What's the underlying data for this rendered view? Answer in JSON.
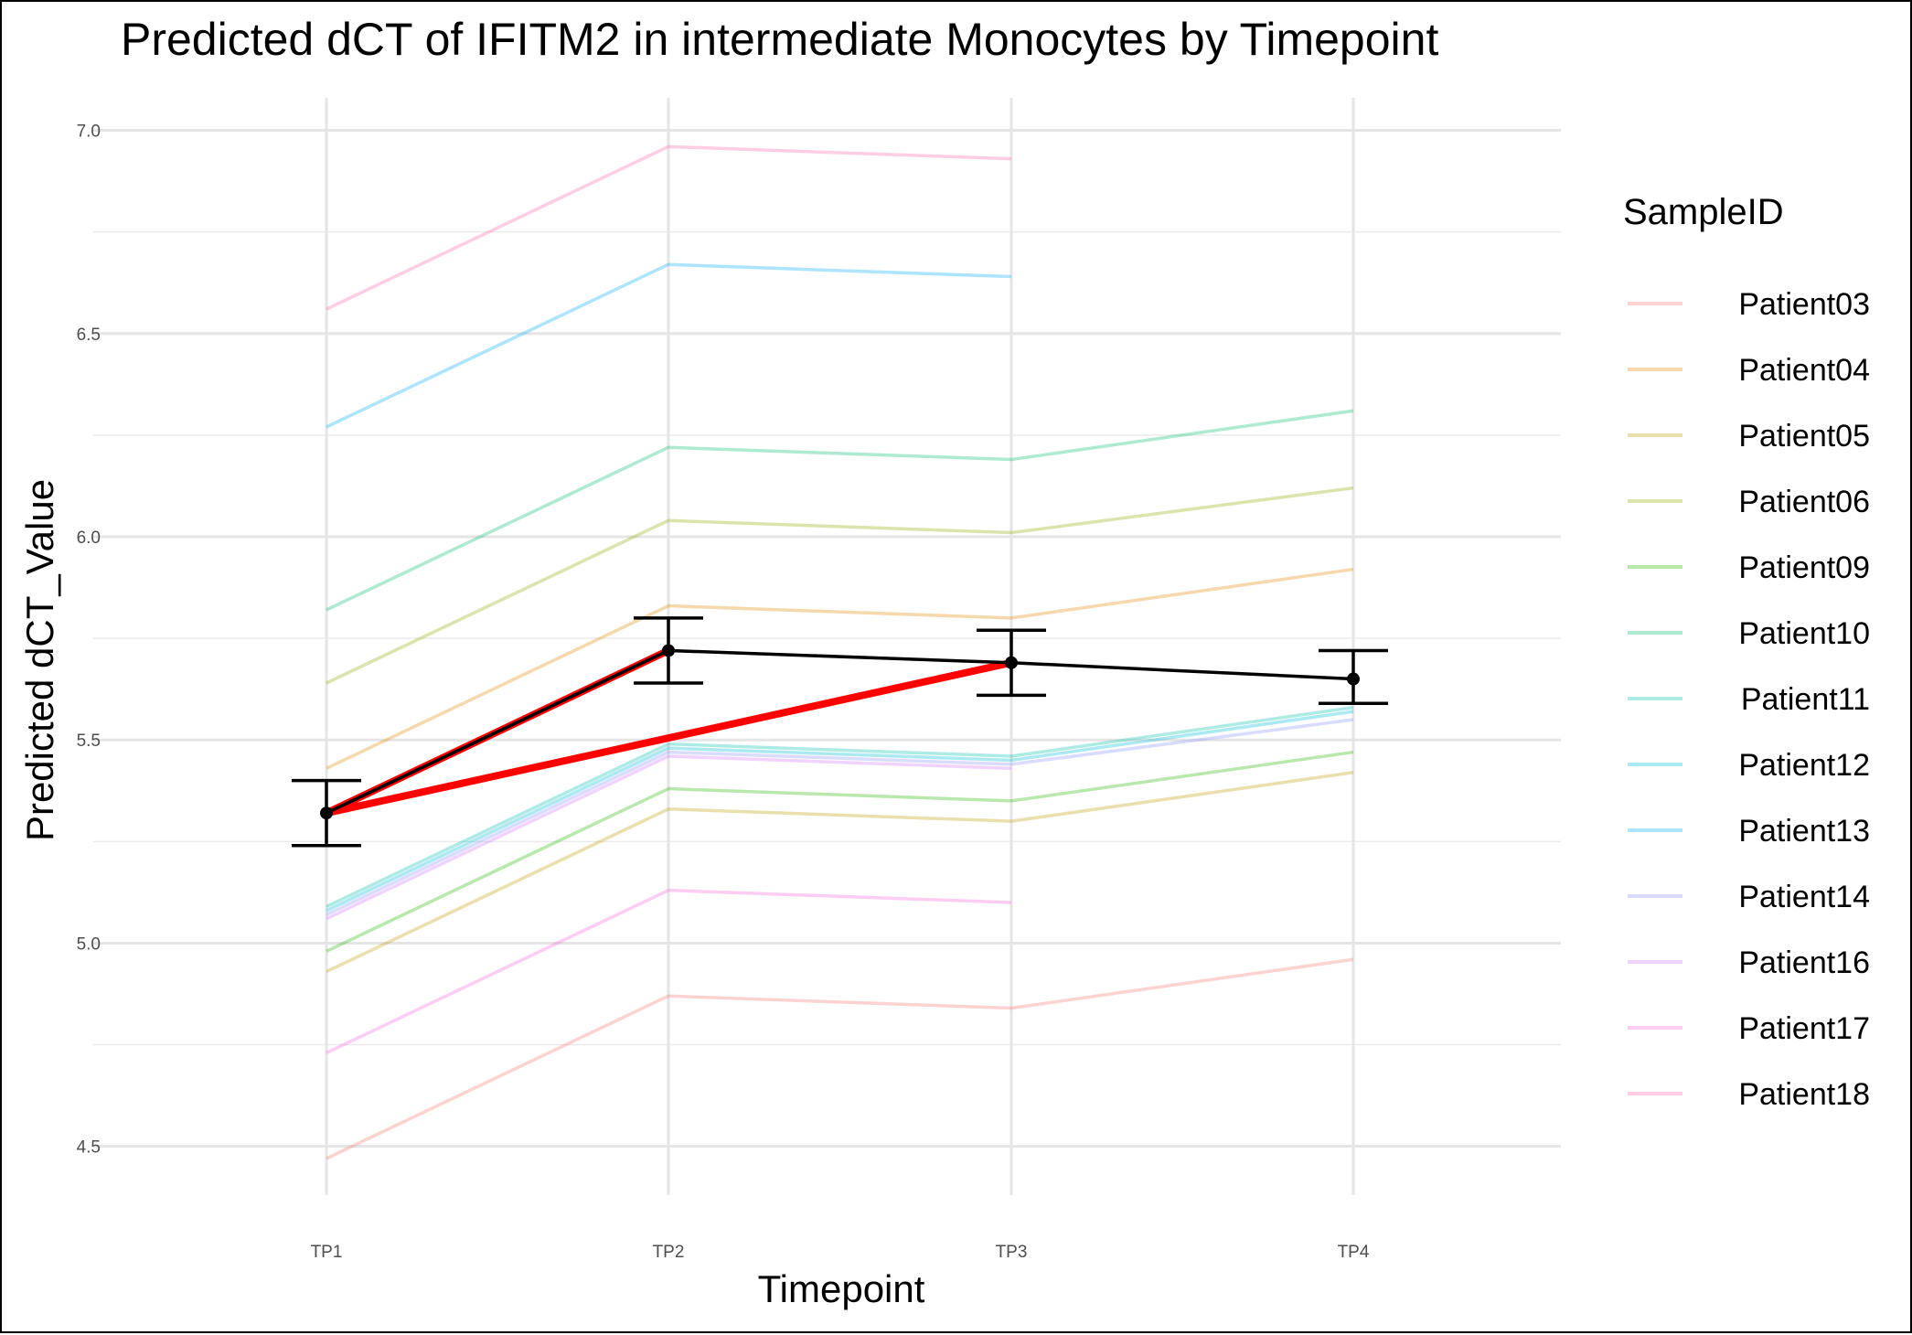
{
  "chart_data": {
    "type": "line",
    "title": "Predicted dCT of  IFITM2 in  intermediate  Monocytes by Timepoint",
    "xlabel": "Timepoint",
    "ylabel": "Predicted dCT_Value",
    "categories": [
      "TP1",
      "TP2",
      "TP3",
      "TP4"
    ],
    "ylim": [
      4.38,
      7.08
    ],
    "yticks": [
      4.5,
      5.0,
      5.5,
      6.0,
      6.5,
      7.0
    ],
    "ytick_labels": [
      "4.5",
      "5.0",
      "5.5",
      "6.0",
      "6.5",
      "7.0"
    ],
    "grid": true,
    "legend": {
      "title": "SampleID",
      "position": "right"
    },
    "series": [
      {
        "name": "Patient03",
        "color": "#F8766D",
        "values": [
          4.47,
          4.87,
          4.84,
          4.96
        ]
      },
      {
        "name": "Patient04",
        "color": "#E18A00",
        "values": [
          5.43,
          5.83,
          5.8,
          5.92
        ]
      },
      {
        "name": "Patient05",
        "color": "#BE9C00",
        "values": [
          4.93,
          5.33,
          5.3,
          5.42
        ]
      },
      {
        "name": "Patient06",
        "color": "#8CAB00",
        "values": [
          5.64,
          6.04,
          6.01,
          6.12
        ]
      },
      {
        "name": "Patient09",
        "color": "#24B700",
        "values": [
          4.98,
          5.38,
          5.35,
          5.47
        ]
      },
      {
        "name": "Patient10",
        "color": "#00BE70",
        "values": [
          5.82,
          6.22,
          6.19,
          6.31
        ]
      },
      {
        "name": "Patient11",
        "color": "#00C1AB",
        "values": [
          5.09,
          5.49,
          5.46,
          5.58
        ]
      },
      {
        "name": "Patient12",
        "color": "#00BBDA",
        "values": [
          5.08,
          5.48,
          5.45,
          5.57
        ]
      },
      {
        "name": "Patient13",
        "color": "#00ACFC",
        "values": [
          6.27,
          6.67,
          6.64,
          null
        ]
      },
      {
        "name": "Patient14",
        "color": "#8B93FF",
        "values": [
          5.07,
          5.47,
          5.44,
          5.55
        ]
      },
      {
        "name": "Patient16",
        "color": "#D575FE",
        "values": [
          5.06,
          5.46,
          5.43,
          null
        ]
      },
      {
        "name": "Patient17",
        "color": "#F962DD",
        "values": [
          4.73,
          5.13,
          5.1,
          null
        ]
      },
      {
        "name": "Patient18",
        "color": "#FF65AC",
        "values": [
          6.56,
          6.96,
          6.93,
          null
        ]
      }
    ],
    "mean": {
      "color": "#000000",
      "values": [
        5.32,
        5.72,
        5.69,
        5.65
      ],
      "lower": [
        5.24,
        5.64,
        5.61,
        5.59
      ],
      "upper": [
        5.4,
        5.8,
        5.77,
        5.72
      ]
    },
    "highlight": {
      "color": "#FF0000",
      "segments": [
        [
          "TP1",
          "TP2"
        ],
        [
          "TP1",
          "TP3"
        ]
      ]
    }
  }
}
